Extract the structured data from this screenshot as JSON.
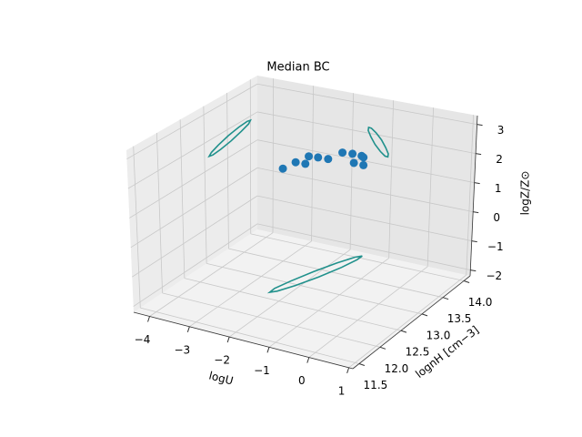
{
  "chart_data": {
    "type": "scatter3d",
    "title": "Median BC",
    "xlabel": "logU",
    "ylabel": "lognH [cm−3]",
    "zlabel": "logZ/Z⊙",
    "xlim": [
      -4.4,
      1.1
    ],
    "ylim": [
      11.35,
      14.15
    ],
    "zlim": [
      -2.2,
      3.3
    ],
    "xticks": [
      {
        "value": -4,
        "label": "−4"
      },
      {
        "value": -3,
        "label": "−3"
      },
      {
        "value": -2,
        "label": "−2"
      },
      {
        "value": -1,
        "label": "−1"
      },
      0,
      1
    ],
    "yticks": [
      11.5,
      {
        "value": 12,
        "label": "12.0"
      },
      12.5,
      {
        "value": 13,
        "label": "13.0"
      },
      13.5,
      {
        "value": 14,
        "label": "14.0"
      }
    ],
    "zticks": [
      {
        "value": -2,
        "label": "−2"
      },
      {
        "value": -1,
        "label": "−1"
      },
      0,
      1,
      2,
      3
    ],
    "grid": true,
    "series": [
      {
        "kind": "points",
        "color": "#1f77b4",
        "x": [
          -2.42,
          -2.37,
          -2.14,
          -2.3,
          -2.09,
          -1.85,
          -1.77,
          -1.54,
          -1.24,
          -1.3,
          -1.22,
          -0.99
        ],
        "y": [
          12.97,
          13.21,
          13.22,
          13.44,
          13.46,
          13.47,
          13.72,
          13.74,
          13.5,
          13.73,
          13.7,
          13.49
        ],
        "z": [
          1.7,
          1.7,
          1.7,
          1.7,
          1.7,
          1.7,
          1.7,
          1.7,
          1.7,
          1.7,
          1.7,
          1.7
        ]
      },
      {
        "kind": "curve",
        "color": "#21918c",
        "x": [
          -1.59,
          -1.59,
          -1.69,
          -1.88,
          -2.1,
          -2.3,
          -2.41,
          -2.42,
          -2.31,
          -2.12,
          -1.9,
          -1.7
        ],
        "y": [
          14.06,
          13.94,
          13.67,
          13.31,
          12.97,
          12.73,
          12.66,
          12.78,
          13.05,
          13.41,
          13.75,
          13.99
        ],
        "z": [
          -2.2,
          -2.2,
          -2.2,
          -2.2,
          -2.2,
          -2.2,
          -2.2,
          -2.2,
          -2.2,
          -2.2,
          -2.2,
          -2.2
        ]
      },
      {
        "kind": "curve",
        "color": "#21918c",
        "x": [
          -4.4,
          -4.4,
          -4.4,
          -4.4,
          -4.4,
          -4.4,
          -4.4,
          -4.4,
          -4.4,
          -4.4,
          -4.4,
          -4.4
        ],
        "y": [
          14.0,
          13.96,
          13.8,
          13.58,
          13.35,
          13.18,
          13.1,
          13.15,
          13.3,
          13.52,
          13.75,
          13.93
        ],
        "z": [
          1.85,
          1.76,
          1.65,
          1.53,
          1.45,
          1.42,
          1.45,
          1.54,
          1.65,
          1.77,
          1.85,
          1.88
        ]
      },
      {
        "kind": "curve",
        "color": "#21918c",
        "x": [
          -1.1,
          -1.09,
          -1.16,
          -1.27,
          -1.41,
          -1.53,
          -1.6,
          -1.61,
          -1.54,
          -1.43,
          -1.29,
          -1.17
        ],
        "y": [
          14.15,
          14.15,
          14.15,
          14.15,
          14.15,
          14.15,
          14.15,
          14.15,
          14.15,
          14.15,
          14.15,
          14.15
        ],
        "z": [
          1.3,
          1.41,
          1.61,
          1.85,
          2.06,
          2.19,
          2.2,
          2.09,
          1.89,
          1.65,
          1.44,
          1.31
        ]
      }
    ]
  }
}
